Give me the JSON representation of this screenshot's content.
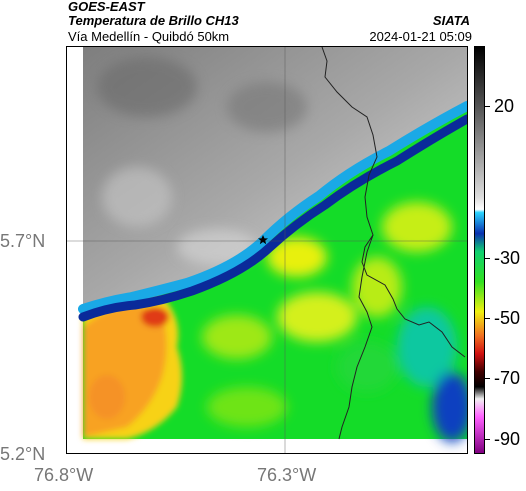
{
  "header": {
    "title": "GOES-EAST",
    "subtitle": "Temperatura de Brillo CH13",
    "organization": "SIATA",
    "route": "Vía Medellín - Quibdó 50km",
    "datetime": "2024-01-21 05:09"
  },
  "map": {
    "lat_labels": [
      "5.7°N",
      "5.2°N"
    ],
    "lon_labels": [
      "76.8°W",
      "76.3°W"
    ],
    "marker_icon": "star-icon"
  },
  "colorbar": {
    "labels": [
      "20",
      "-30",
      "-50",
      "-70",
      "-90"
    ],
    "values": [
      20,
      -30,
      -50,
      -70,
      -90
    ],
    "range": [
      -95,
      40
    ],
    "unit_hint": "°C"
  }
}
